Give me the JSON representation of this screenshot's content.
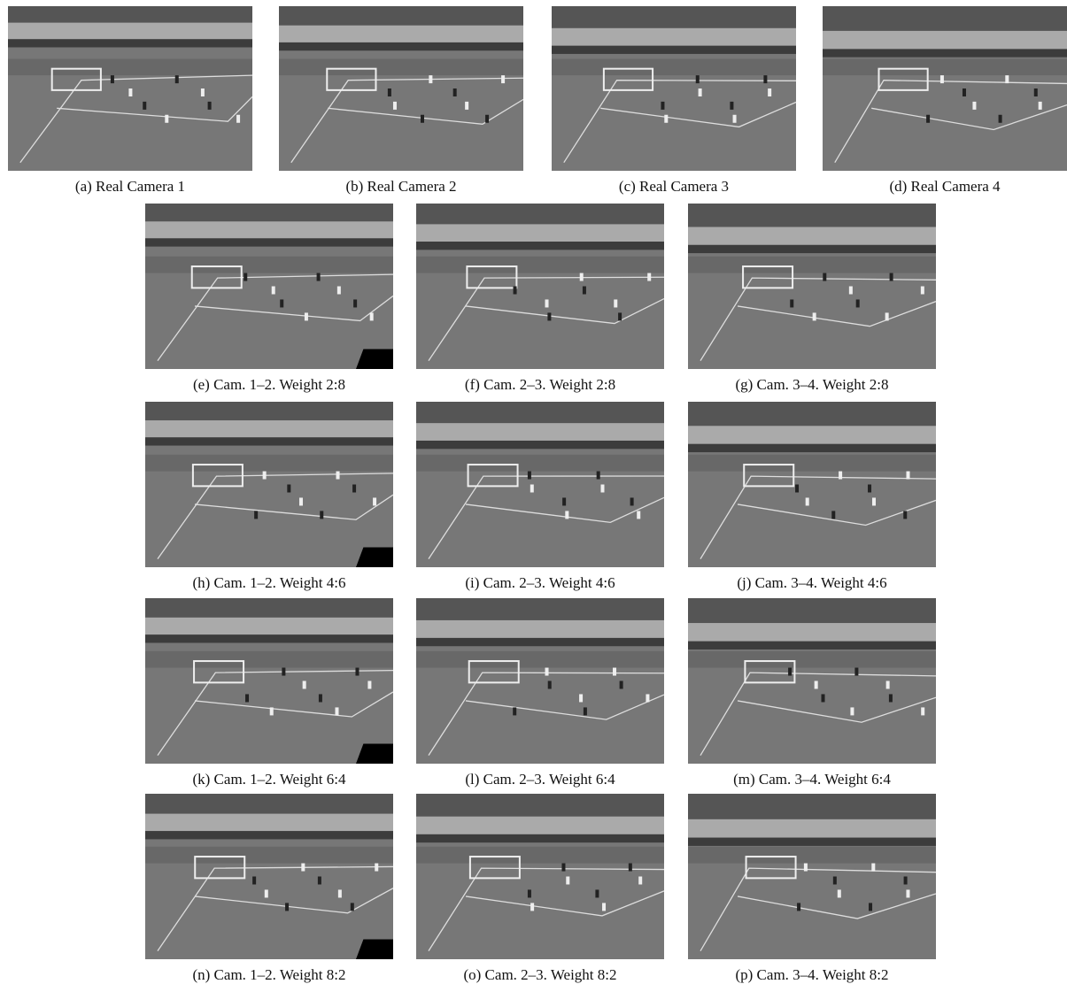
{
  "figure": {
    "panels": [
      "(a) Real Camera 1",
      "(b) Real Camera 2",
      "(c) Real Camera 3",
      "(d) Real Camera 4",
      "(e) Cam. 1–2. Weight 2:8",
      "(f) Cam. 2–3. Weight 2:8",
      "(g) Cam. 3–4. Weight 2:8",
      "(h) Cam. 1–2. Weight 4:6",
      "(i) Cam. 2–3. Weight 4:6",
      "(j) Cam. 3–4. Weight 4:6",
      "(k) Cam. 1–2. Weight 6:4",
      "(l) Cam. 2–3. Weight 6:4",
      "(m) Cam. 3–4. Weight 6:4",
      "(n) Cam. 1–2. Weight 8:2",
      "(o) Cam. 2–3. Weight 8:2",
      "(p) Cam. 3–4. Weight 8:2"
    ]
  }
}
